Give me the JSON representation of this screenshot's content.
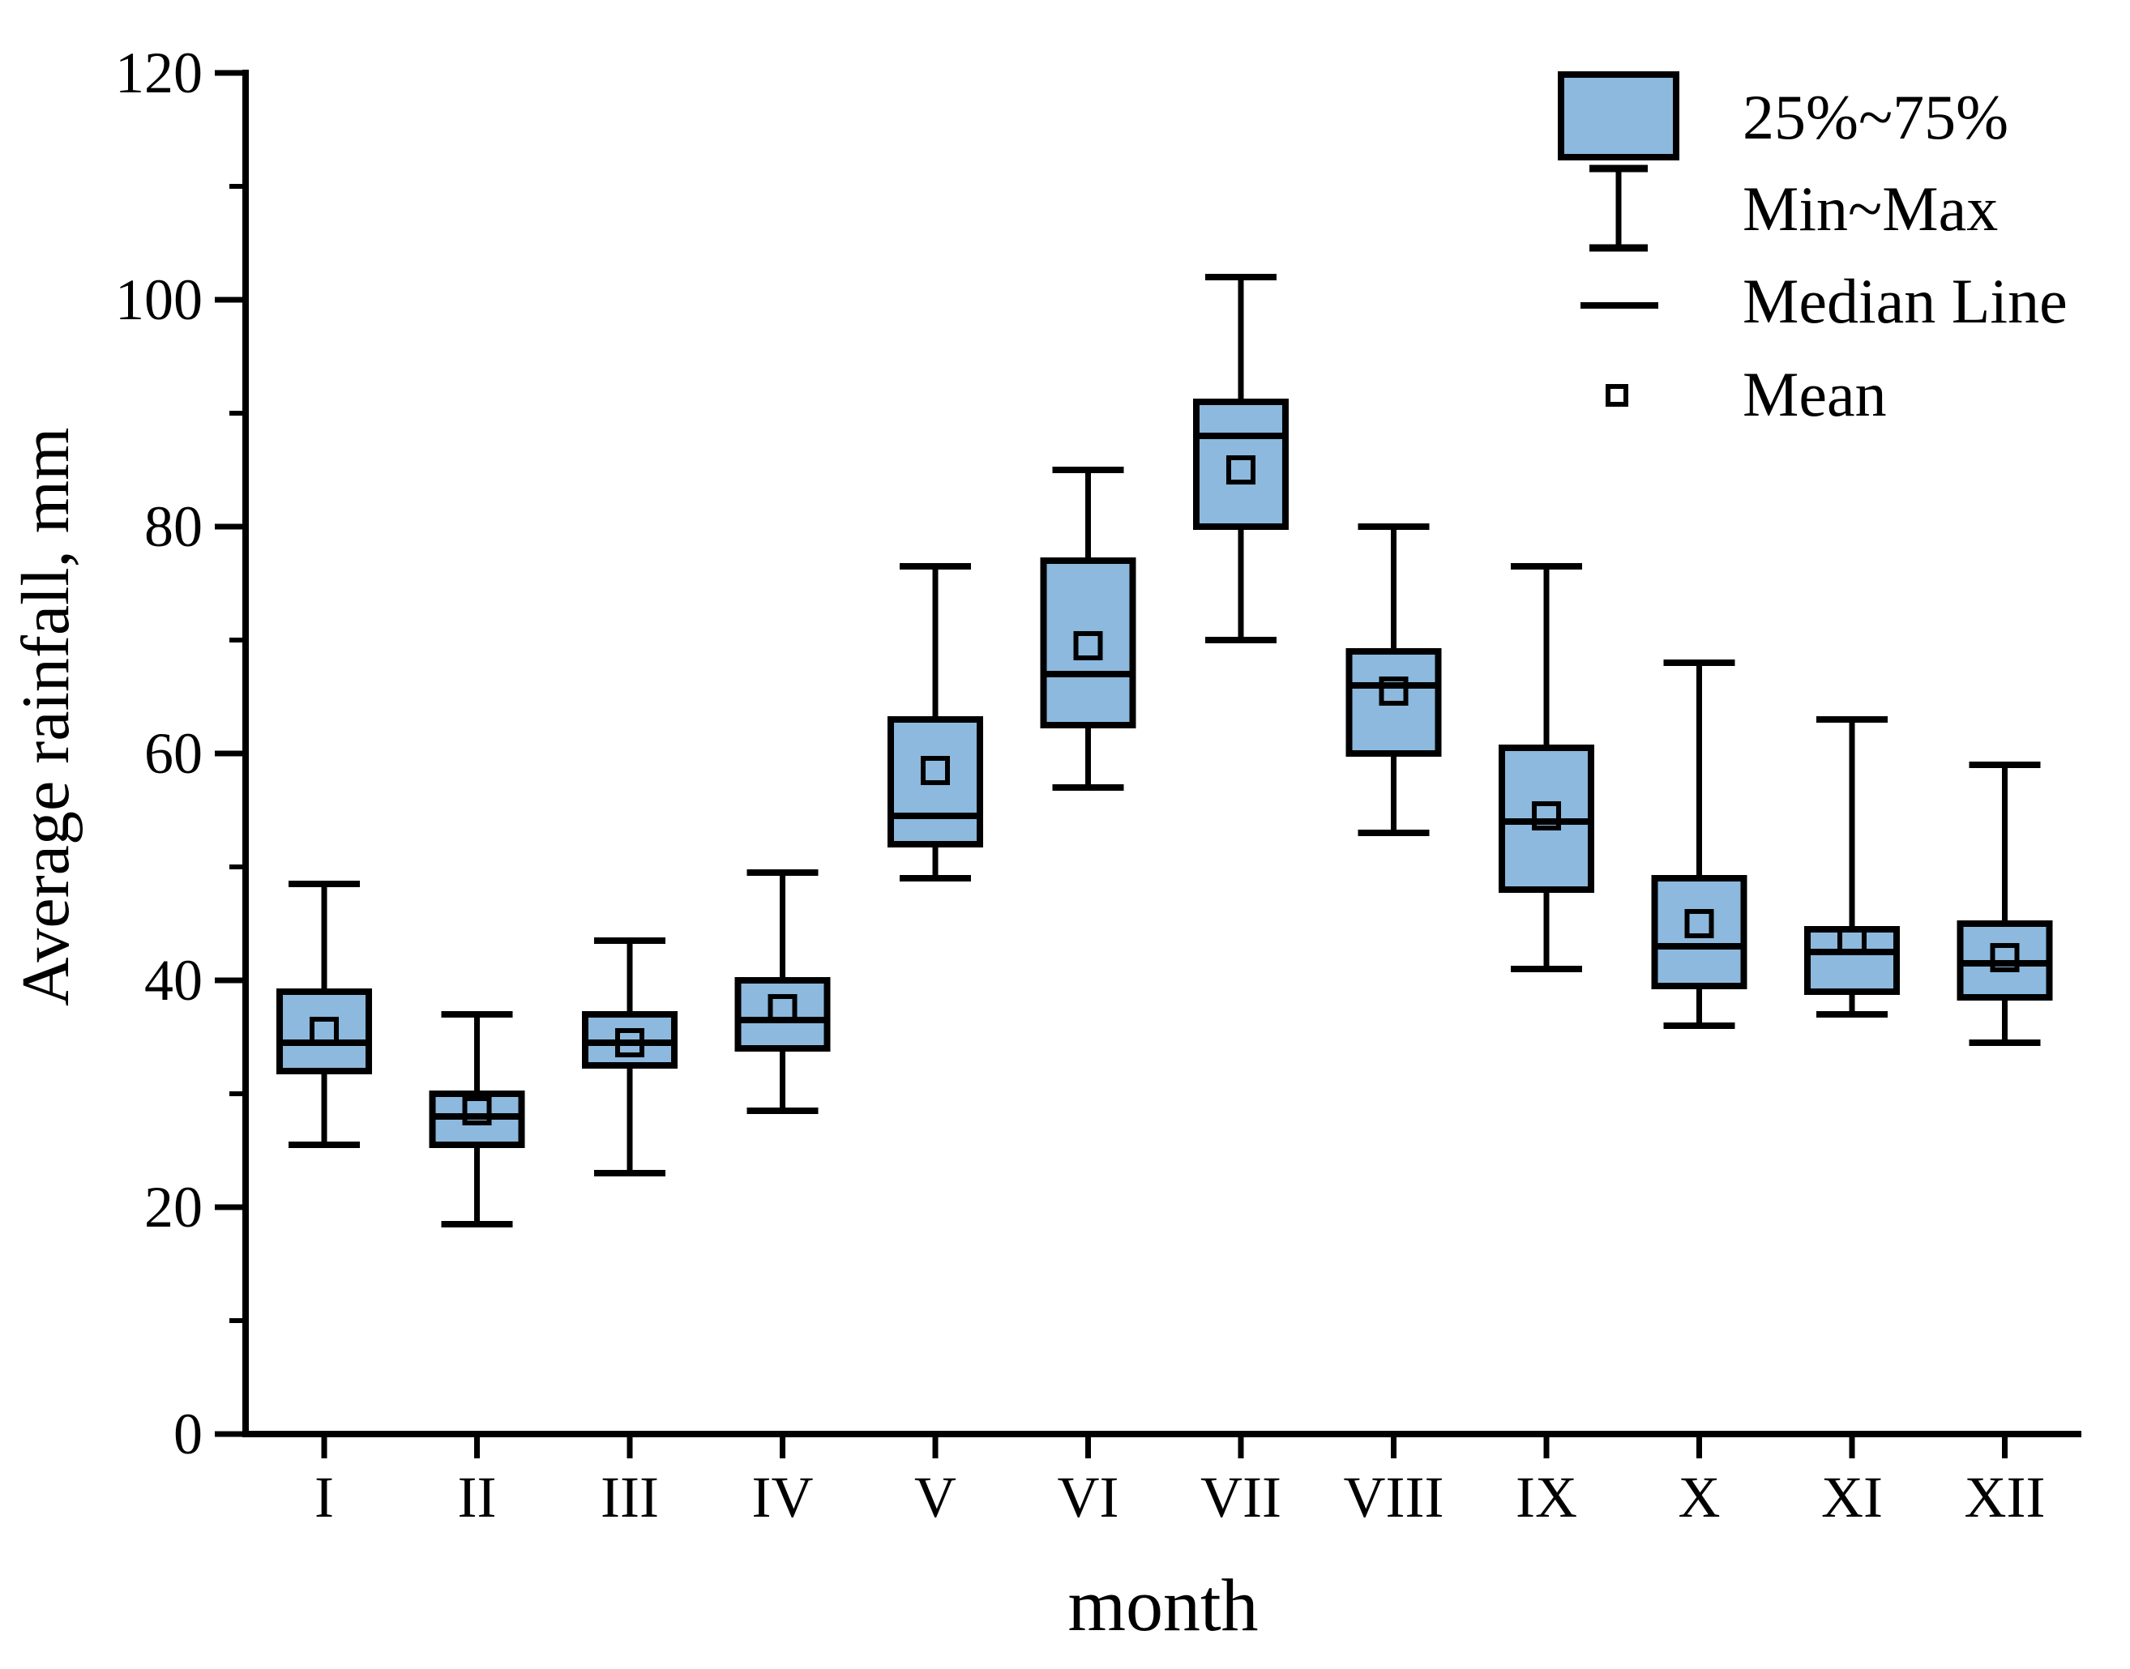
{
  "chart_data": {
    "type": "boxplot",
    "title": "",
    "xlabel": "month",
    "ylabel": "Average rainfall, mm",
    "ylim": [
      0,
      120
    ],
    "y_major_step": 20,
    "y_minor_step": 10,
    "y_tick_labels": [
      "0",
      "20",
      "40",
      "60",
      "80",
      "100",
      "120"
    ],
    "categories": [
      "I",
      "II",
      "III",
      "IV",
      "V",
      "VI",
      "VII",
      "VIII",
      "IX",
      "X",
      "XI",
      "XII"
    ],
    "boxes": [
      {
        "category": "I",
        "min": 25.5,
        "q1": 32,
        "median": 34.5,
        "mean": 35.5,
        "q3": 39,
        "max": 48.5
      },
      {
        "category": "II",
        "min": 18.5,
        "q1": 25.5,
        "median": 28,
        "mean": 28.5,
        "q3": 30,
        "max": 37
      },
      {
        "category": "III",
        "min": 23,
        "q1": 32.5,
        "median": 34.5,
        "mean": 34.5,
        "q3": 37,
        "max": 43.5
      },
      {
        "category": "IV",
        "min": 28.5,
        "q1": 34,
        "median": 36.5,
        "mean": 37.5,
        "q3": 40,
        "max": 49.5
      },
      {
        "category": "V",
        "min": 49,
        "q1": 52,
        "median": 54.5,
        "mean": 58.5,
        "q3": 63,
        "max": 76.5
      },
      {
        "category": "VI",
        "min": 57,
        "q1": 62.5,
        "median": 67,
        "mean": 69.5,
        "q3": 77,
        "max": 85
      },
      {
        "category": "VII",
        "min": 70,
        "q1": 80,
        "median": 88,
        "mean": 85,
        "q3": 91,
        "max": 102
      },
      {
        "category": "VIII",
        "min": 53,
        "q1": 60,
        "median": 66,
        "mean": 65.5,
        "q3": 69,
        "max": 80
      },
      {
        "category": "IX",
        "min": 41,
        "q1": 48,
        "median": 54,
        "mean": 54.5,
        "q3": 60.5,
        "max": 76.5
      },
      {
        "category": "X",
        "min": 36,
        "q1": 39.5,
        "median": 43,
        "mean": 45,
        "q3": 49,
        "max": 68
      },
      {
        "category": "XI",
        "min": 37,
        "q1": 39,
        "median": 42.5,
        "mean": 43.5,
        "q3": 44.5,
        "max": 63
      },
      {
        "category": "XII",
        "min": 34.5,
        "q1": 38.5,
        "median": 41.5,
        "mean": 42,
        "q3": 45,
        "max": 59
      }
    ],
    "legend": [
      {
        "symbol": "iqr-box",
        "label": "25%~75%"
      },
      {
        "symbol": "whisker",
        "label": "Min~Max"
      },
      {
        "symbol": "median-line",
        "label": "Median Line"
      },
      {
        "symbol": "mean-marker",
        "label": "Mean"
      }
    ],
    "colors": {
      "box_fill": "#8cb9dd",
      "line": "#000000",
      "background": "#ffffff"
    },
    "layout": {
      "grid": false,
      "legend_position": "top-right"
    }
  }
}
